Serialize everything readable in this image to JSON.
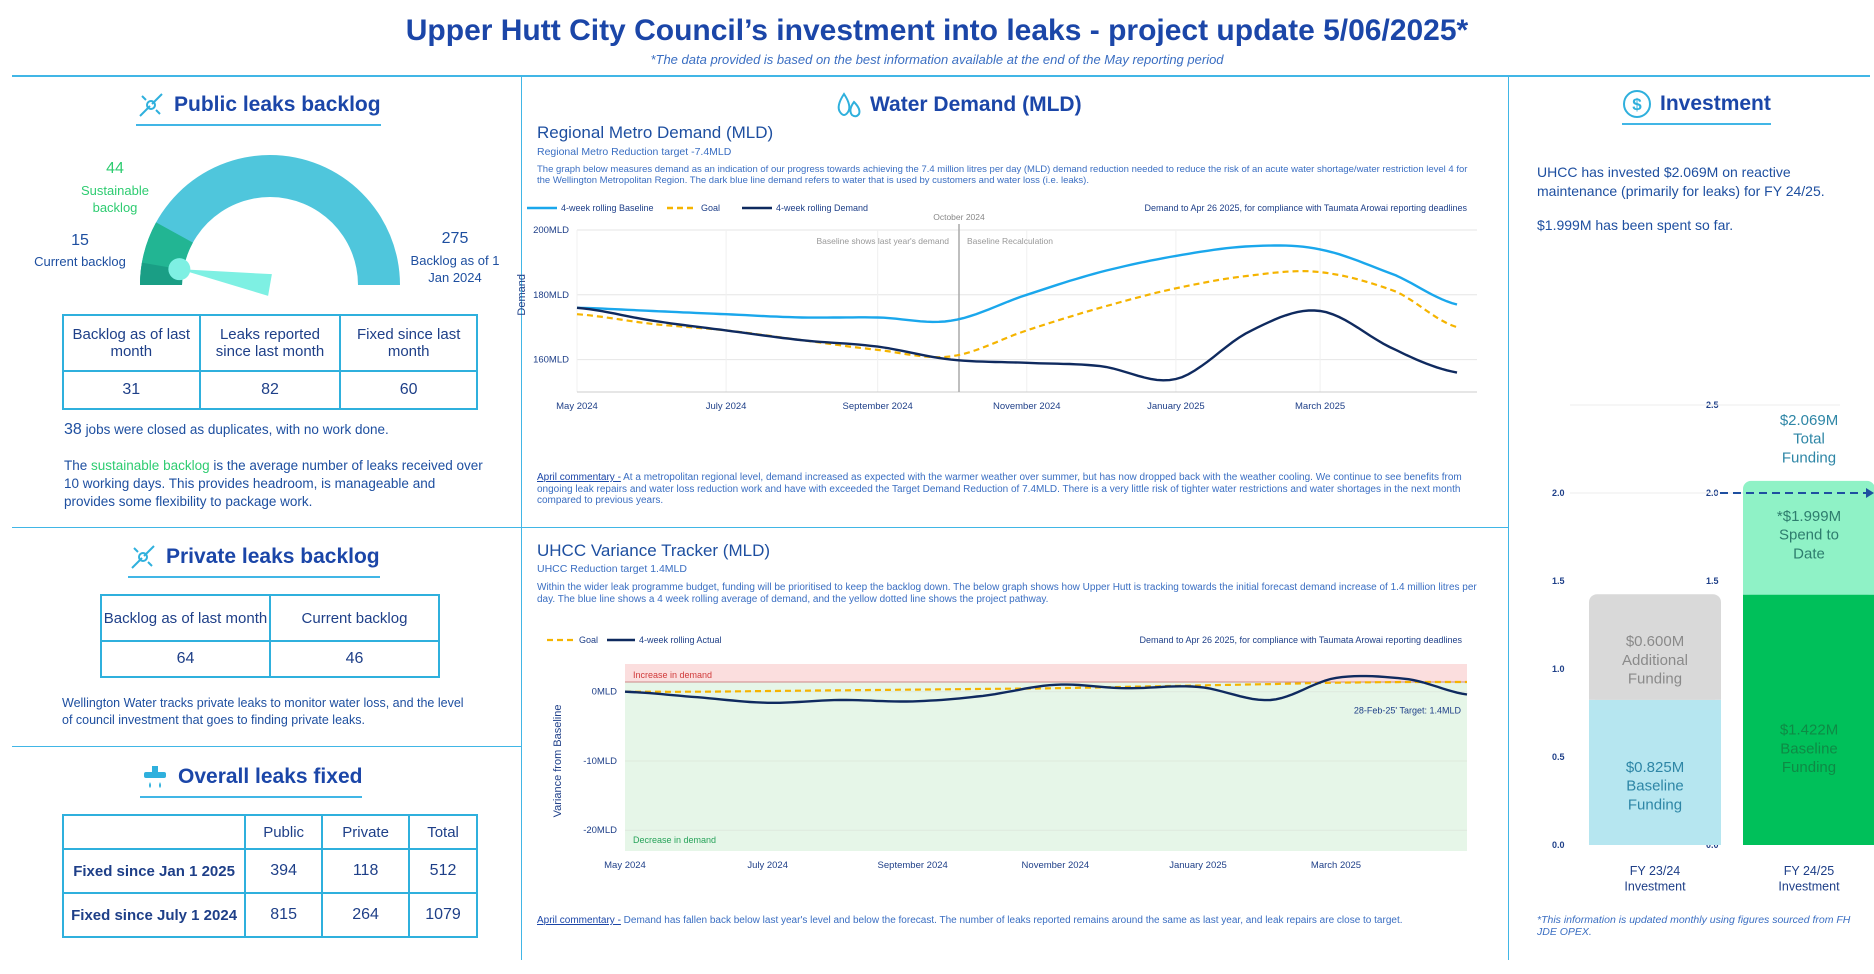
{
  "header": {
    "title": "Upper Hutt City Council’s investment into leaks - project update 5/06/2025*",
    "subtitle": "*The data provided is based on the best information available at the end of the May reporting period"
  },
  "public_backlog": {
    "heading": "Public leaks backlog",
    "gauge": {
      "sustainable_value": "44",
      "sustainable_label": "Sustainable backlog",
      "current_value": "15",
      "current_label": "Current backlog",
      "max_value": "275",
      "max_label": "Backlog as of 1 Jan 2024",
      "current_fraction": 0.055,
      "sustainable_fraction": 0.16
    },
    "table": {
      "headers": [
        "Backlog as of last month",
        "Leaks reported since last month",
        "Fixed since last month"
      ],
      "values": [
        "31",
        "82",
        "60"
      ]
    },
    "duplicates_count": "38",
    "duplicates_text": "jobs were closed as duplicates, with no work done.",
    "note_prefix": "The ",
    "note_highlight": "sustainable backlog",
    "note_rest": " is the average number of leaks received over 10 working days. This provides headroom, is manageable and provides some flexibility to package work."
  },
  "private_backlog": {
    "heading": "Private leaks backlog",
    "table": {
      "headers": [
        "Backlog as of last month",
        "Current backlog"
      ],
      "values": [
        "64",
        "46"
      ]
    },
    "note": "Wellington Water tracks private leaks to monitor water loss, and the level of council investment that goes to finding private leaks."
  },
  "overall_fixed": {
    "heading": "Overall leaks fixed",
    "columns": [
      "Public",
      "Private",
      "Total"
    ],
    "rows": [
      {
        "label": "Fixed since Jan 1 2025",
        "values": [
          "394",
          "118",
          "512"
        ]
      },
      {
        "label": "Fixed since July 1 2024",
        "values": [
          "815",
          "264",
          "1079"
        ]
      }
    ]
  },
  "water_demand": {
    "heading": "Water Demand (MLD)",
    "regional": {
      "title": "Regional Metro Demand (MLD)",
      "target": "Regional Metro Reduction target -7.4MLD",
      "description": "The graph below measures demand as an indication of our progress towards achieving the 7.4 million litres per day (MLD) demand reduction needed to reduce the risk of an acute water shortage/water restriction level 4 for the Wellington Metropolitan Region. The dark blue line demand refers to water that is used by customers and water loss (i.e. leaks).",
      "legend": [
        "4-week rolling Baseline",
        "Goal",
        "4-week rolling Demand"
      ],
      "note": "Demand to Apr 26 2025, for compliance with Taumata Arowai reporting deadlines",
      "marker_label": "October 2024",
      "annot_left": "Baseline shows last year's demand",
      "annot_right": "Baseline Recalculation",
      "ylabel": "Demand",
      "y_ticks": [
        "200MLD",
        "180MLD",
        "160MLD"
      ],
      "x_ticks": [
        "May 2024",
        "July 2024",
        "September 2024",
        "November 2024",
        "January 2025",
        "March 2025"
      ],
      "commentary_label": "April commentary -",
      "commentary": " At a metropolitan regional level, demand increased as expected with the warmer weather over summer, but has now dropped back with the weather cooling. We continue to see benefits from ongoing leak repairs and water loss reduction work and have with exceeded the Target Demand Reduction of 7.4MLD. There is a very little risk of tighter water restrictions and water shortages in the next month compared to previous years."
    },
    "variance": {
      "title": "UHCC Variance Tracker (MLD)",
      "target": "UHCC Reduction target 1.4MLD",
      "description": "Within the wider leak programme budget, funding will be prioritised to keep the backlog down. The below graph shows how Upper Hutt is tracking towards the initial forecast demand increase of 1.4 million litres per day. The blue line shows a 4 week rolling average of demand, and the yellow dotted line shows the project pathway.",
      "legend": [
        "Goal",
        "4-week rolling Actual"
      ],
      "note": "Demand to Apr 26 2025, for compliance with Taumata Arowai reporting deadlines",
      "increase_label": "Increase in demand",
      "decrease_label": "Decrease in demand",
      "target_label": "28-Feb-25' Target: 1.4MLD",
      "ylabel": "Variance from Baseline",
      "y_ticks": [
        "0MLD",
        "-10MLD",
        "-20MLD"
      ],
      "x_ticks": [
        "May 2024",
        "July 2024",
        "September 2024",
        "November 2024",
        "January 2025",
        "March 2025"
      ],
      "commentary_label": "April commentary -",
      "commentary": " Demand has fallen back below last year's level and below the forecast. The number of leaks reported remains around the same as last year, and leak repairs are close to target."
    }
  },
  "investment": {
    "heading": "Investment",
    "text1": "UHCC has invested $2.069M on reactive maintenance (primarily for leaks) for FY 24/25.",
    "text2": "$1.999M has been spent so far.",
    "y_ticks": [
      "2.5",
      "2.0",
      "1.5",
      "1.0",
      "0.5",
      "0.0"
    ],
    "bar1": {
      "label_line1": "FY 23/24",
      "label_line2": "Investment",
      "seg_baseline": "$0.825M Baseline Funding",
      "seg_additional": "$0.600M Additional Funding"
    },
    "bar2": {
      "label_line1": "FY 24/25",
      "label_line2": "Investment",
      "total": "$2.069M Total Funding",
      "spend": "*$1.999M Spend to Date",
      "seg_baseline": "$1.422M Baseline Funding"
    },
    "footnote": "*This information is updated monthly using figures sourced from FH JDE OPEX.",
    "colors": {
      "baseline_light": "#b6e6f0",
      "additional": "#d9d9d9",
      "baseline_dark": "#00c05a",
      "spend_light": "#8ff2c6"
    }
  },
  "chart_data": [
    {
      "type": "line",
      "title": "Regional Metro Demand (MLD)",
      "xlabel": "",
      "ylabel": "Demand",
      "ylim": [
        150,
        200
      ],
      "x": [
        "2024-05-01",
        "2024-06-01",
        "2024-07-01",
        "2024-08-01",
        "2024-09-01",
        "2024-10-01",
        "2024-11-01",
        "2024-12-01",
        "2025-01-01",
        "2025-02-01",
        "2025-03-01",
        "2025-04-01",
        "2025-04-26"
      ],
      "series": [
        {
          "name": "4-week rolling Baseline",
          "values": [
            176,
            175,
            174,
            173,
            173,
            172,
            180,
            187,
            192,
            195,
            194,
            186,
            177
          ]
        },
        {
          "name": "Goal",
          "values": [
            174,
            171,
            169,
            166,
            163,
            161,
            169,
            176,
            182,
            186,
            187,
            181,
            170
          ]
        },
        {
          "name": "4-week rolling Demand",
          "values": [
            176,
            172,
            169,
            166,
            164,
            160,
            159,
            158,
            154,
            169,
            175,
            163,
            156
          ]
        }
      ]
    },
    {
      "type": "line",
      "title": "UHCC Variance Tracker (MLD)",
      "xlabel": "",
      "ylabel": "Variance from Baseline",
      "ylim": [
        -23,
        4
      ],
      "x": [
        "2024-05-01",
        "2024-06-01",
        "2024-07-01",
        "2024-08-01",
        "2024-09-01",
        "2024-10-01",
        "2024-11-01",
        "2024-12-01",
        "2025-01-01",
        "2025-02-01",
        "2025-03-01",
        "2025-04-01",
        "2025-04-26"
      ],
      "series": [
        {
          "name": "Goal",
          "values": [
            0,
            0,
            0.1,
            0.2,
            0.3,
            0.4,
            0.5,
            0.7,
            0.9,
            1.1,
            1.3,
            1.4,
            1.4
          ]
        },
        {
          "name": "4-week rolling Actual",
          "values": [
            0,
            -0.8,
            -1.6,
            -1.2,
            -1.4,
            -0.6,
            1.0,
            0.5,
            0.7,
            -1.2,
            2.0,
            1.8,
            -0.4
          ]
        }
      ]
    },
    {
      "type": "bar",
      "title": "Investment",
      "categories": [
        "FY 23/24 Investment",
        "FY 24/25 Investment"
      ],
      "ylim": [
        0,
        2.5
      ],
      "series": [
        {
          "name": "Baseline Funding",
          "values": [
            0.825,
            1.422
          ]
        },
        {
          "name": "Additional Funding",
          "values": [
            0.6,
            0
          ]
        },
        {
          "name": "Spend to Date",
          "values": [
            0,
            1.999
          ]
        },
        {
          "name": "Total Funding",
          "values": [
            0,
            2.069
          ]
        }
      ]
    }
  ]
}
